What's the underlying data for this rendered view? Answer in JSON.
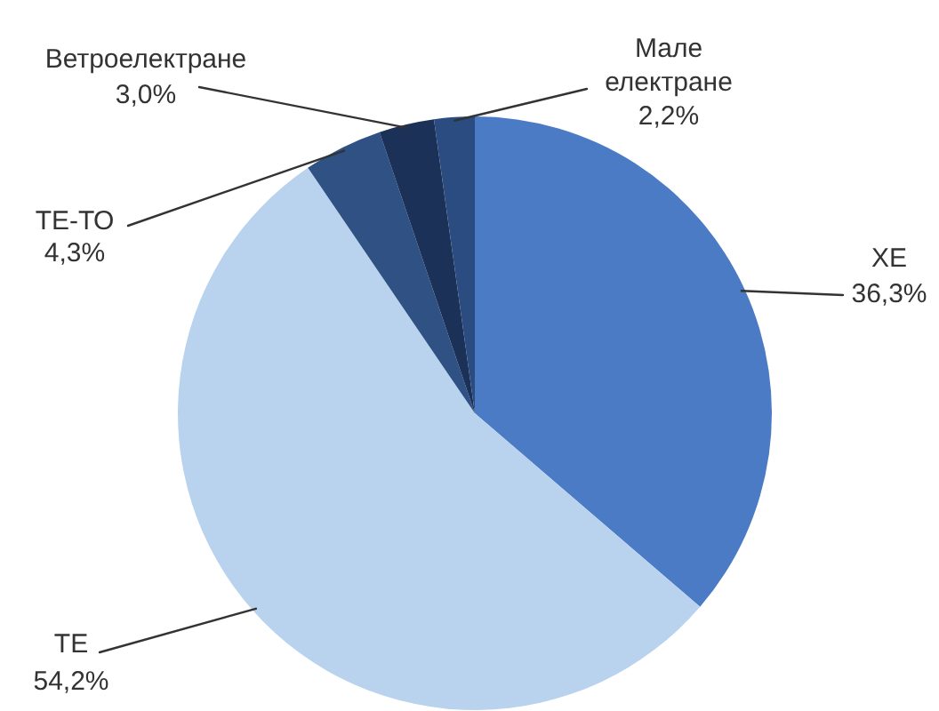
{
  "chart_data": {
    "type": "pie",
    "categories": [
      "ХЕ",
      "ТЕ",
      "ТЕ-ТО",
      "Ветроелектране",
      "Мале електране"
    ],
    "values": [
      36.3,
      54.2,
      4.3,
      3.0,
      2.2
    ],
    "value_labels": [
      "36,3%",
      "54,2%",
      "4,3%",
      "3,0%",
      "2,2%"
    ],
    "colors": [
      "#4a7bc4",
      "#b9d3ef",
      "#2f5184",
      "#1c3157",
      "#2a4c80"
    ],
    "legend": false
  }
}
